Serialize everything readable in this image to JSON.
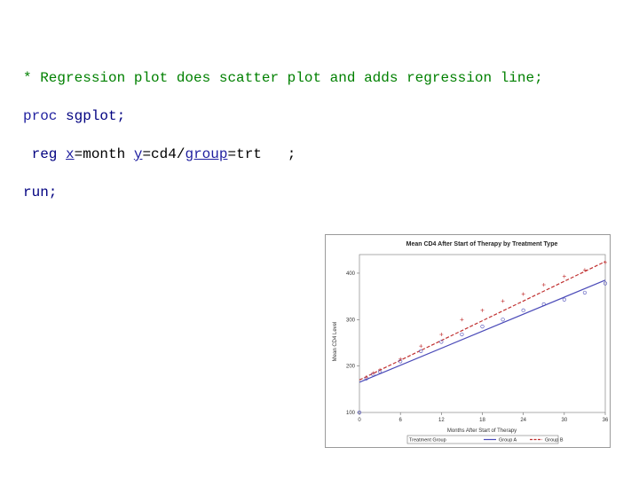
{
  "code": {
    "line1": "* Regression plot does scatter plot and adds regression line;",
    "line2_proc": "proc",
    "line2_rest": " sgplot;",
    "line3_stmt": " reg",
    "line3_x_opt": "x",
    "line3_x_val": "=month ",
    "line3_y_opt": "y",
    "line3_y_val": "=cd4/",
    "line3_group_opt": "group",
    "line3_group_val": "=trt   ;",
    "line4": "run;"
  },
  "colors": {
    "comment": "#008000",
    "keyword": "#1f1f9f",
    "groupA": "#4a4ab8",
    "groupB": "#c03030"
  },
  "chart_data": {
    "type": "scatter",
    "title": "Mean CD4 After Start of Therapy by Treatment Type",
    "xlabel": "Months After Start of Therapy",
    "ylabel": "Mean CD4 Level",
    "xlim": [
      0,
      36
    ],
    "ylim": [
      100,
      440
    ],
    "xticks": [
      0,
      6,
      12,
      18,
      24,
      30,
      36
    ],
    "yticks": [
      100,
      200,
      300,
      400
    ],
    "legend": {
      "title": "Treatment Group",
      "position": "bottom"
    },
    "series": [
      {
        "name": "Group A",
        "marker": "circle",
        "line": "solid",
        "points": [
          [
            0,
            100
          ],
          [
            1,
            173
          ],
          [
            2,
            182
          ],
          [
            3,
            188
          ],
          [
            6,
            210
          ],
          [
            9,
            232
          ],
          [
            12,
            252
          ],
          [
            15,
            268
          ],
          [
            18,
            285
          ],
          [
            21,
            300
          ],
          [
            24,
            320
          ],
          [
            27,
            333
          ],
          [
            30,
            343
          ],
          [
            33,
            358
          ],
          [
            36,
            378
          ]
        ],
        "fit": [
          [
            0,
            165
          ],
          [
            36,
            385
          ]
        ]
      },
      {
        "name": "Group B",
        "marker": "plus",
        "line": "dashed",
        "points": [
          [
            1,
            176
          ],
          [
            2,
            185
          ],
          [
            3,
            192
          ],
          [
            6,
            215
          ],
          [
            9,
            243
          ],
          [
            12,
            268
          ],
          [
            15,
            300
          ],
          [
            18,
            320
          ],
          [
            21,
            340
          ],
          [
            24,
            355
          ],
          [
            27,
            375
          ],
          [
            30,
            393
          ],
          [
            33,
            407
          ],
          [
            36,
            423
          ]
        ],
        "fit": [
          [
            0,
            170
          ],
          [
            36,
            425
          ]
        ]
      }
    ]
  }
}
